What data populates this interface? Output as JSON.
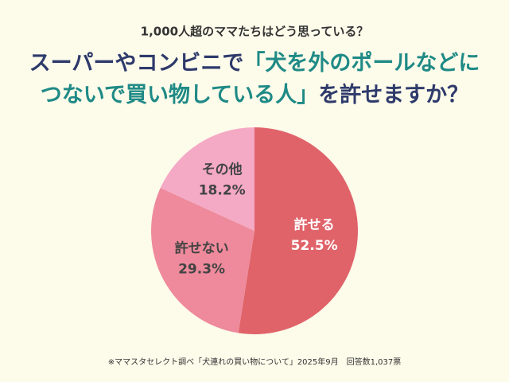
{
  "chart_data": {
    "type": "pie",
    "subtitle": "1,000人超のママたちはどう思っている？",
    "title_parts": [
      "スーパーやコンビニで",
      "「犬を外のポールなどに",
      "つないで買い物している人」",
      "を許せますか？"
    ],
    "categories": [
      "許せる",
      "許せない",
      "その他"
    ],
    "values": [
      52.5,
      29.3,
      18.2
    ],
    "value_labels": [
      "52.5%",
      "29.3%",
      "18.2%"
    ],
    "colors": [
      "#e0636a",
      "#ee8a9c",
      "#f4a9c4"
    ],
    "source": "※ママスタセレクト調べ「犬連れの買い物について」2025年9月　回答数1,037票"
  }
}
